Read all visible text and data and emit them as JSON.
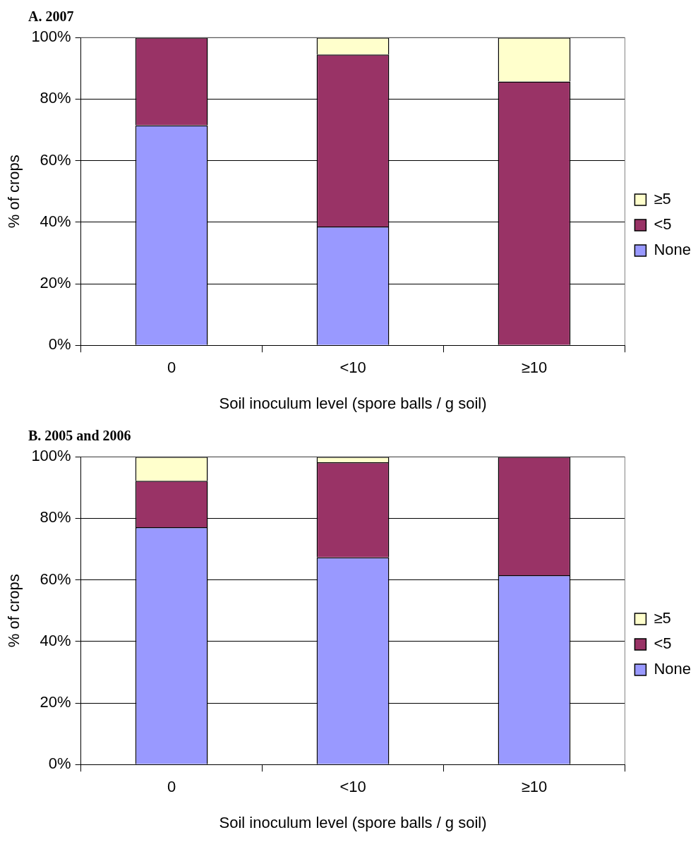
{
  "chart_data": [
    {
      "type": "bar",
      "title": "A. 2007",
      "xlabel": "Soil inoculum level (spore balls / g soil)",
      "ylabel": "% of crops",
      "categories": [
        "0",
        "<10",
        "≥10"
      ],
      "stacked": true,
      "legend": "right",
      "grid": "y",
      "ylim": [
        0,
        100
      ],
      "yticks": [
        {
          "value": 0,
          "label": "0%"
        },
        {
          "value": 20,
          "label": "20%"
        },
        {
          "value": 40,
          "label": "40%"
        },
        {
          "value": 60,
          "label": "60%"
        },
        {
          "value": 80,
          "label": "80%"
        },
        {
          "value": 100,
          "label": "100%"
        }
      ],
      "series": [
        {
          "name": "None",
          "color": "#9999ff",
          "values": [
            71.5,
            38.6,
            0
          ]
        },
        {
          "name": "<5",
          "color": "#993366",
          "values": [
            28.5,
            55.9,
            85.7
          ]
        },
        {
          "name": "≥5",
          "color": "#ffffcc",
          "values": [
            0,
            5.5,
            14.3
          ]
        }
      ]
    },
    {
      "type": "bar",
      "title": "B. 2005 and 2006",
      "xlabel": "Soil inoculum level (spore balls / g soil)",
      "ylabel": "% of crops",
      "categories": [
        "0",
        "<10",
        "≥10"
      ],
      "stacked": true,
      "legend": "right",
      "grid": "y",
      "ylim": [
        0,
        100
      ],
      "yticks": [
        {
          "value": 0,
          "label": "0%"
        },
        {
          "value": 20,
          "label": "20%"
        },
        {
          "value": 40,
          "label": "40%"
        },
        {
          "value": 60,
          "label": "60%"
        },
        {
          "value": 80,
          "label": "80%"
        },
        {
          "value": 100,
          "label": "100%"
        }
      ],
      "series": [
        {
          "name": "None",
          "color": "#9999ff",
          "values": [
            77.1,
            67.3,
            61.5
          ]
        },
        {
          "name": "<5",
          "color": "#993366",
          "values": [
            15.1,
            30.9,
            38.5
          ]
        },
        {
          "name": "≥5",
          "color": "#ffffcc",
          "values": [
            7.8,
            1.8,
            0
          ]
        }
      ]
    }
  ]
}
